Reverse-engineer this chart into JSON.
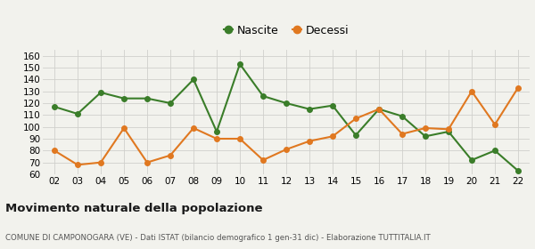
{
  "years": [
    "02",
    "03",
    "04",
    "05",
    "06",
    "07",
    "08",
    "09",
    "10",
    "11",
    "12",
    "13",
    "14",
    "15",
    "16",
    "17",
    "18",
    "19",
    "20",
    "21",
    "22"
  ],
  "nascite": [
    117,
    111,
    129,
    124,
    124,
    120,
    140,
    96,
    153,
    126,
    120,
    115,
    118,
    93,
    115,
    109,
    92,
    96,
    72,
    80,
    63
  ],
  "decessi": [
    80,
    68,
    70,
    99,
    70,
    76,
    99,
    90,
    90,
    72,
    81,
    88,
    92,
    107,
    115,
    94,
    99,
    98,
    130,
    102,
    133
  ],
  "nascite_color": "#3a7d29",
  "decessi_color": "#e07820",
  "background_color": "#f2f2ed",
  "grid_color": "#d0d0cc",
  "ylim": [
    60,
    165
  ],
  "yticks": [
    60,
    70,
    80,
    90,
    100,
    110,
    120,
    130,
    140,
    150,
    160
  ],
  "title": "Movimento naturale della popolazione",
  "subtitle": "COMUNE DI CAMPONOGARA (VE) - Dati ISTAT (bilancio demografico 1 gen-31 dic) - Elaborazione TUTTITALIA.IT",
  "legend_nascite": "Nascite",
  "legend_decessi": "Decessi",
  "marker_size": 4,
  "line_width": 1.5
}
